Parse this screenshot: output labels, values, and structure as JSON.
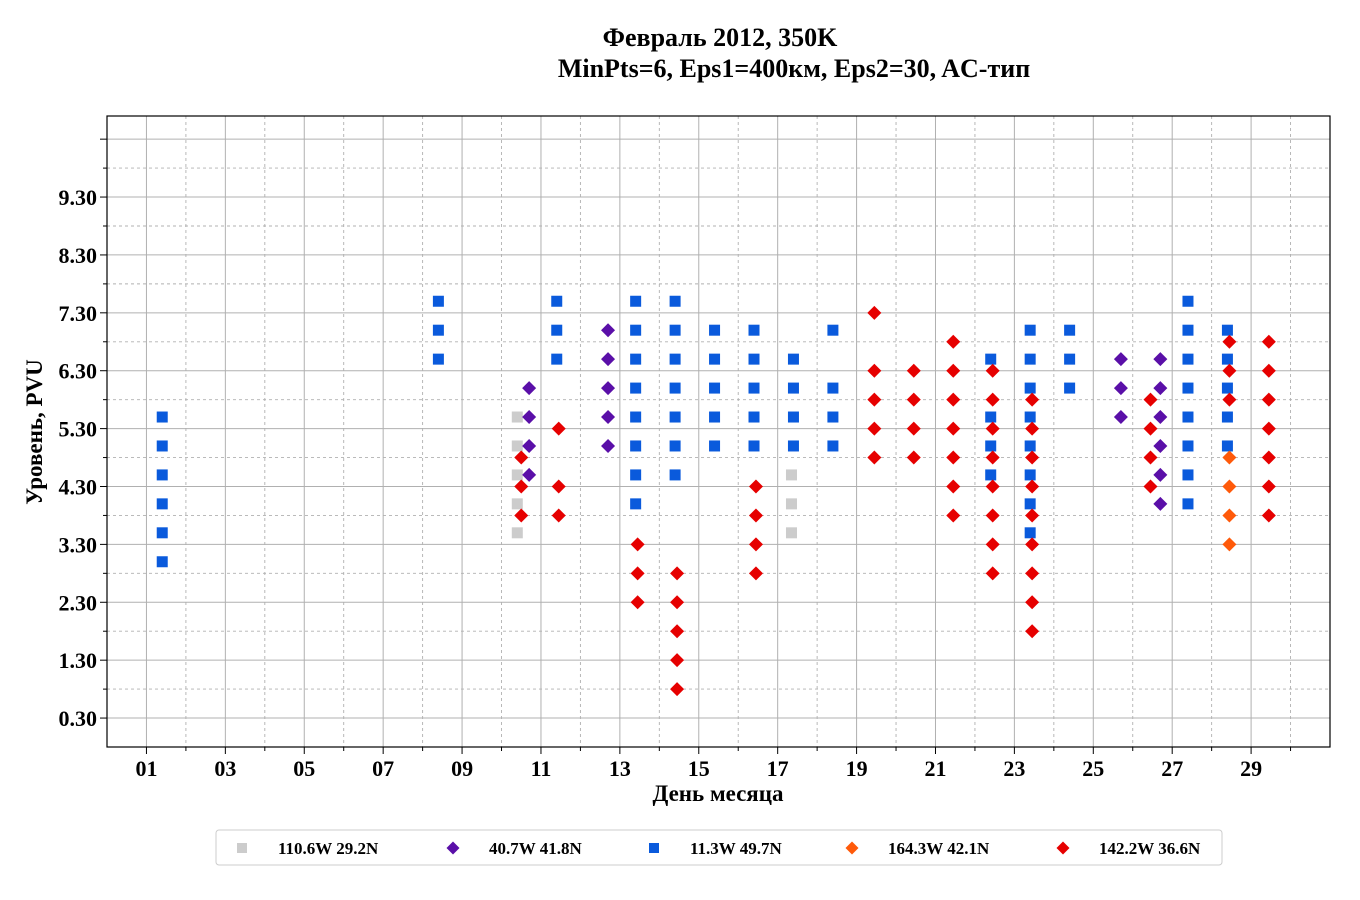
{
  "chart_data": {
    "type": "scatter",
    "title": "Февраль 2012, 350K",
    "subtitle": "MinPts=6, Eps1=400км, Eps2=30, AC-тип",
    "xlabel": "День месяца",
    "ylabel": "Уровень, PVU",
    "xlim": [
      0,
      31
    ],
    "ylim": [
      -0.2,
      10.7
    ],
    "x_major_ticks": [
      1,
      3,
      5,
      7,
      9,
      11,
      13,
      15,
      17,
      19,
      21,
      23,
      25,
      27,
      29
    ],
    "x_tick_labels": [
      "01",
      "03",
      "05",
      "07",
      "09",
      "11",
      "13",
      "15",
      "17",
      "19",
      "21",
      "23",
      "25",
      "27",
      "29"
    ],
    "y_major_ticks": [
      0.3,
      1.3,
      2.3,
      3.3,
      4.3,
      5.3,
      6.3,
      7.3,
      8.3,
      9.3,
      10.3
    ],
    "y_tick_labels": [
      "0.30",
      "1.30",
      "2.30",
      "3.30",
      "4.30",
      "5.30",
      "6.30",
      "7.30",
      "8.30",
      "9.30",
      ""
    ],
    "grid": true,
    "legend_position": "bottom",
    "series": [
      {
        "name": "110.6W 29.2N",
        "color": "#cccccc",
        "marker": "square",
        "points": [
          [
            10.4,
            3.5
          ],
          [
            10.4,
            4.0
          ],
          [
            10.4,
            4.5
          ],
          [
            10.4,
            5.0
          ],
          [
            10.4,
            5.5
          ],
          [
            17.35,
            3.5
          ],
          [
            17.35,
            4.0
          ],
          [
            17.35,
            4.5
          ]
        ]
      },
      {
        "name": "40.7W 41.8N",
        "color": "#5a0fa8",
        "marker": "diamond",
        "points": [
          [
            10.7,
            4.5
          ],
          [
            10.7,
            5.0
          ],
          [
            10.7,
            5.5
          ],
          [
            10.7,
            6.0
          ],
          [
            12.7,
            5.0
          ],
          [
            12.7,
            5.5
          ],
          [
            12.7,
            6.0
          ],
          [
            12.7,
            6.5
          ],
          [
            12.7,
            7.0
          ],
          [
            25.7,
            5.5
          ],
          [
            25.7,
            6.0
          ],
          [
            25.7,
            6.5
          ],
          [
            26.7,
            4.0
          ],
          [
            26.7,
            4.5
          ],
          [
            26.7,
            5.0
          ],
          [
            26.7,
            5.5
          ],
          [
            26.7,
            6.0
          ],
          [
            26.7,
            6.5
          ]
        ]
      },
      {
        "name": "11.3W 49.7N",
        "color": "#0a5adc",
        "marker": "square",
        "points": [
          [
            1.4,
            3.0
          ],
          [
            1.4,
            3.5
          ],
          [
            1.4,
            4.0
          ],
          [
            1.4,
            4.5
          ],
          [
            1.4,
            5.0
          ],
          [
            1.4,
            5.5
          ],
          [
            8.4,
            6.5
          ],
          [
            8.4,
            7.0
          ],
          [
            8.4,
            7.5
          ],
          [
            11.4,
            6.5
          ],
          [
            11.4,
            7.0
          ],
          [
            11.4,
            7.5
          ],
          [
            13.4,
            4.0
          ],
          [
            13.4,
            4.5
          ],
          [
            13.4,
            5.0
          ],
          [
            13.4,
            5.5
          ],
          [
            13.4,
            6.0
          ],
          [
            13.4,
            6.5
          ],
          [
            13.4,
            7.0
          ],
          [
            13.4,
            7.5
          ],
          [
            14.4,
            4.5
          ],
          [
            14.4,
            5.0
          ],
          [
            14.4,
            5.5
          ],
          [
            14.4,
            6.0
          ],
          [
            14.4,
            6.5
          ],
          [
            14.4,
            7.0
          ],
          [
            14.4,
            7.5
          ],
          [
            15.4,
            5.0
          ],
          [
            15.4,
            5.5
          ],
          [
            15.4,
            6.0
          ],
          [
            15.4,
            6.5
          ],
          [
            15.4,
            7.0
          ],
          [
            16.4,
            5.0
          ],
          [
            16.4,
            5.5
          ],
          [
            16.4,
            6.0
          ],
          [
            16.4,
            6.5
          ],
          [
            16.4,
            7.0
          ],
          [
            17.4,
            5.0
          ],
          [
            17.4,
            5.5
          ],
          [
            17.4,
            6.0
          ],
          [
            17.4,
            6.5
          ],
          [
            18.4,
            5.0
          ],
          [
            18.4,
            5.5
          ],
          [
            18.4,
            6.0
          ],
          [
            18.4,
            7.0
          ],
          [
            22.4,
            4.5
          ],
          [
            22.4,
            5.0
          ],
          [
            22.4,
            5.5
          ],
          [
            22.4,
            6.5
          ],
          [
            23.4,
            3.5
          ],
          [
            23.4,
            4.0
          ],
          [
            23.4,
            4.5
          ],
          [
            23.4,
            5.0
          ],
          [
            23.4,
            5.5
          ],
          [
            23.4,
            6.0
          ],
          [
            23.4,
            6.5
          ],
          [
            23.4,
            7.0
          ],
          [
            24.4,
            6.0
          ],
          [
            24.4,
            6.5
          ],
          [
            24.4,
            7.0
          ],
          [
            27.4,
            4.0
          ],
          [
            27.4,
            4.5
          ],
          [
            27.4,
            5.0
          ],
          [
            27.4,
            5.5
          ],
          [
            27.4,
            6.0
          ],
          [
            27.4,
            6.5
          ],
          [
            27.4,
            7.0
          ],
          [
            27.4,
            7.5
          ],
          [
            28.4,
            5.0
          ],
          [
            28.4,
            5.5
          ],
          [
            28.4,
            6.0
          ],
          [
            28.4,
            6.5
          ],
          [
            28.4,
            7.0
          ]
        ]
      },
      {
        "name": "164.3W 42.1N",
        "color": "#ff5a0a",
        "marker": "diamond",
        "points": [
          [
            28.45,
            3.3
          ],
          [
            28.45,
            3.8
          ],
          [
            28.45,
            4.3
          ],
          [
            28.45,
            4.8
          ]
        ]
      },
      {
        "name": "142.2W 36.6N",
        "color": "#e60000",
        "marker": "diamond",
        "points": [
          [
            10.5,
            3.8
          ],
          [
            10.5,
            4.3
          ],
          [
            10.5,
            4.8
          ],
          [
            11.45,
            3.8
          ],
          [
            11.45,
            4.3
          ],
          [
            11.45,
            5.3
          ],
          [
            13.45,
            2.3
          ],
          [
            13.45,
            2.8
          ],
          [
            13.45,
            3.3
          ],
          [
            14.45,
            0.8
          ],
          [
            14.45,
            1.3
          ],
          [
            14.45,
            1.8
          ],
          [
            14.45,
            2.3
          ],
          [
            14.45,
            2.8
          ],
          [
            16.45,
            2.8
          ],
          [
            16.45,
            3.3
          ],
          [
            16.45,
            3.8
          ],
          [
            16.45,
            4.3
          ],
          [
            19.45,
            4.8
          ],
          [
            19.45,
            5.3
          ],
          [
            19.45,
            5.8
          ],
          [
            19.45,
            6.3
          ],
          [
            19.45,
            7.3
          ],
          [
            20.45,
            4.8
          ],
          [
            20.45,
            5.3
          ],
          [
            20.45,
            5.8
          ],
          [
            20.45,
            6.3
          ],
          [
            21.45,
            3.8
          ],
          [
            21.45,
            4.3
          ],
          [
            21.45,
            4.8
          ],
          [
            21.45,
            5.3
          ],
          [
            21.45,
            5.8
          ],
          [
            21.45,
            6.3
          ],
          [
            21.45,
            6.8
          ],
          [
            22.45,
            2.8
          ],
          [
            22.45,
            3.3
          ],
          [
            22.45,
            3.8
          ],
          [
            22.45,
            4.3
          ],
          [
            22.45,
            4.8
          ],
          [
            22.45,
            5.3
          ],
          [
            22.45,
            5.8
          ],
          [
            22.45,
            6.3
          ],
          [
            23.45,
            1.8
          ],
          [
            23.45,
            2.3
          ],
          [
            23.45,
            2.8
          ],
          [
            23.45,
            3.3
          ],
          [
            23.45,
            3.8
          ],
          [
            23.45,
            4.3
          ],
          [
            23.45,
            4.8
          ],
          [
            23.45,
            5.3
          ],
          [
            23.45,
            5.8
          ],
          [
            26.45,
            4.3
          ],
          [
            26.45,
            4.8
          ],
          [
            26.45,
            5.3
          ],
          [
            26.45,
            5.8
          ],
          [
            28.45,
            5.8
          ],
          [
            28.45,
            6.3
          ],
          [
            28.45,
            6.8
          ],
          [
            29.45,
            3.8
          ],
          [
            29.45,
            4.3
          ],
          [
            29.45,
            4.8
          ],
          [
            29.45,
            5.3
          ],
          [
            29.45,
            5.8
          ],
          [
            29.45,
            6.3
          ],
          [
            29.45,
            6.8
          ]
        ]
      }
    ]
  }
}
